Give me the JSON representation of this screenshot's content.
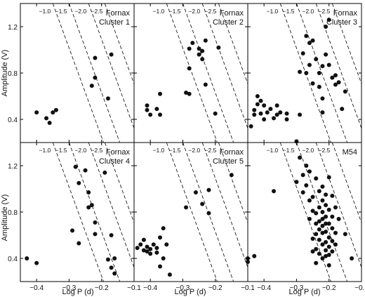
{
  "figure": {
    "xlabel": "Log P (d)",
    "ylabel": "Amplitude (V)"
  },
  "chart_data": [
    {
      "type": "scatter",
      "panel": "Fornax Cluster 1",
      "title_lines": [
        "Fornax",
        "Cluster 1"
      ],
      "xlabel": "",
      "ylabel": "Amplitude (V)",
      "xlim": [
        -0.45,
        -0.1
      ],
      "ylim": [
        0.2,
        1.4
      ],
      "x_ticks": [],
      "y_ticks": [
        "0.4",
        "0.8",
        "1.2"
      ],
      "metallicity_lines": [
        {
          "label": "−1.0",
          "x_at_top": -0.35
        },
        {
          "label": "−1.5",
          "x_at_top": -0.3
        },
        {
          "label": "−2.0",
          "x_at_top": -0.24
        },
        {
          "label": "−2.5",
          "x_at_top": -0.19
        }
      ],
      "points": [
        [
          -0.4,
          0.46
        ],
        [
          -0.37,
          0.41
        ],
        [
          -0.36,
          0.37
        ],
        [
          -0.35,
          0.46
        ],
        [
          -0.34,
          0.48
        ],
        [
          -0.23,
          0.69
        ],
        [
          -0.22,
          0.76
        ],
        [
          -0.22,
          0.93
        ],
        [
          -0.18,
          0.58
        ],
        [
          -0.17,
          0.96
        ]
      ]
    },
    {
      "type": "scatter",
      "panel": "Fornax Cluster 2",
      "title_lines": [
        "Fornax",
        "Cluster 2"
      ],
      "xlabel": "",
      "ylabel": "",
      "xlim": [
        -0.45,
        -0.1
      ],
      "ylim": [
        0.2,
        1.4
      ],
      "x_ticks": [],
      "y_ticks": [],
      "metallicity_lines": [
        {
          "label": "−1.0",
          "x_at_top": -0.35
        },
        {
          "label": "−1.5",
          "x_at_top": -0.3
        },
        {
          "label": "−2.0",
          "x_at_top": -0.24
        },
        {
          "label": "−2.5",
          "x_at_top": -0.19
        }
      ],
      "points": [
        [
          -0.41,
          0.48
        ],
        [
          -0.41,
          0.52
        ],
        [
          -0.4,
          0.44
        ],
        [
          -0.38,
          0.49
        ],
        [
          -0.37,
          0.62
        ],
        [
          -0.37,
          0.44
        ],
        [
          -0.29,
          0.63
        ],
        [
          -0.28,
          0.62
        ],
        [
          -0.28,
          0.84
        ],
        [
          -0.28,
          1.01
        ],
        [
          -0.27,
          1.06
        ],
        [
          -0.25,
          1.01
        ],
        [
          -0.25,
          0.96
        ],
        [
          -0.24,
          0.99
        ],
        [
          -0.24,
          0.92
        ],
        [
          -0.23,
          1.08
        ],
        [
          -0.23,
          0.7
        ],
        [
          -0.2,
          0.45
        ],
        [
          -0.19,
          1.02
        ]
      ]
    },
    {
      "type": "scatter",
      "panel": "Fornax Cluster 3",
      "title_lines": [
        "Fornax",
        "Cluster 3"
      ],
      "xlabel": "",
      "ylabel": "",
      "xlim": [
        -0.45,
        -0.1
      ],
      "ylim": [
        0.2,
        1.4
      ],
      "x_ticks": [],
      "y_ticks": [],
      "metallicity_lines": [
        {
          "label": "−1.0",
          "x_at_top": -0.35
        },
        {
          "label": "−1.5",
          "x_at_top": -0.3
        },
        {
          "label": "−2.0",
          "x_at_top": -0.24
        },
        {
          "label": "−2.5",
          "x_at_top": -0.19
        }
      ],
      "points": [
        [
          -0.44,
          0.34
        ],
        [
          -0.43,
          0.44
        ],
        [
          -0.43,
          0.48
        ],
        [
          -0.42,
          0.53
        ],
        [
          -0.42,
          0.6
        ],
        [
          -0.41,
          0.56
        ],
        [
          -0.41,
          0.45
        ],
        [
          -0.4,
          0.52
        ],
        [
          -0.4,
          0.4
        ],
        [
          -0.39,
          0.46
        ],
        [
          -0.38,
          0.49
        ],
        [
          -0.37,
          0.41
        ],
        [
          -0.36,
          0.44
        ],
        [
          -0.36,
          0.52
        ],
        [
          -0.35,
          0.46
        ],
        [
          -0.33,
          0.45
        ],
        [
          -0.33,
          0.4
        ],
        [
          -0.3,
          0.21
        ],
        [
          -0.29,
          0.44
        ],
        [
          -0.29,
          0.81
        ],
        [
          -0.28,
          0.97
        ],
        [
          -0.27,
          0.8
        ],
        [
          -0.27,
          1.12
        ],
        [
          -0.26,
          1.06
        ],
        [
          -0.26,
          0.87
        ],
        [
          -0.25,
          1.08
        ],
        [
          -0.25,
          0.71
        ],
        [
          -0.24,
          0.92
        ],
        [
          -0.23,
          0.8
        ],
        [
          -0.23,
          0.68
        ],
        [
          -0.22,
          0.46
        ],
        [
          -0.22,
          0.58
        ],
        [
          -0.22,
          0.86
        ],
        [
          -0.21,
          0.96
        ],
        [
          -0.21,
          1.2
        ],
        [
          -0.2,
          1.26
        ],
        [
          -0.2,
          0.87
        ],
        [
          -0.19,
          0.76
        ],
        [
          -0.18,
          0.7
        ],
        [
          -0.18,
          0.78
        ],
        [
          -0.17,
          0.72
        ],
        [
          -0.16,
          0.49
        ],
        [
          -0.15,
          0.64
        ]
      ]
    },
    {
      "type": "scatter",
      "panel": "Fornax Cluster 4",
      "title_lines": [
        "Fornax",
        "Cluster 4"
      ],
      "xlabel": "Log P (d)",
      "ylabel": "Amplitude (V)",
      "xlim": [
        -0.45,
        -0.1
      ],
      "ylim": [
        0.2,
        1.4
      ],
      "x_ticks": [
        "−0.4",
        "−0.3",
        "−0.2",
        "−0.1"
      ],
      "y_ticks": [
        "0.4",
        "0.8",
        "1.2"
      ],
      "metallicity_lines": [
        {
          "label": "−1.0",
          "x_at_top": -0.35
        },
        {
          "label": "−1.5",
          "x_at_top": -0.3
        },
        {
          "label": "−2.0",
          "x_at_top": -0.24
        },
        {
          "label": "−2.5",
          "x_at_top": -0.19
        }
      ],
      "points": [
        [
          -0.43,
          0.4
        ],
        [
          -0.4,
          0.36
        ],
        [
          -0.29,
          0.64
        ],
        [
          -0.28,
          1.19
        ],
        [
          -0.27,
          1.05
        ],
        [
          -0.27,
          0.53
        ],
        [
          -0.25,
          1.16
        ],
        [
          -0.24,
          0.97
        ],
        [
          -0.24,
          0.84
        ],
        [
          -0.23,
          0.86
        ],
        [
          -0.22,
          0.71
        ],
        [
          -0.22,
          0.61
        ],
        [
          -0.19,
          1.14
        ],
        [
          -0.18,
          0.39
        ],
        [
          -0.17,
          0.32
        ],
        [
          -0.17,
          0.6
        ],
        [
          -0.16,
          0.4
        ],
        [
          -0.16,
          0.27
        ]
      ]
    },
    {
      "type": "scatter",
      "panel": "Fornax Cluster 5",
      "title_lines": [
        "Fornax",
        "Cluster 5"
      ],
      "xlabel": "Log P (d)",
      "ylabel": "",
      "xlim": [
        -0.45,
        -0.1
      ],
      "ylim": [
        0.2,
        1.4
      ],
      "x_ticks": [
        "−0.4",
        "−0.3",
        "−0.2",
        "−0.1"
      ],
      "y_ticks": [],
      "metallicity_lines": [
        {
          "label": "−1.0",
          "x_at_top": -0.35
        },
        {
          "label": "−1.5",
          "x_at_top": -0.3
        },
        {
          "label": "−2.0",
          "x_at_top": -0.24
        },
        {
          "label": "−2.5",
          "x_at_top": -0.19
        }
      ],
      "points": [
        [
          -0.44,
          0.49
        ],
        [
          -0.43,
          0.52
        ],
        [
          -0.42,
          0.56
        ],
        [
          -0.42,
          0.47
        ],
        [
          -0.41,
          0.5
        ],
        [
          -0.41,
          0.46
        ],
        [
          -0.4,
          0.44
        ],
        [
          -0.4,
          0.48
        ],
        [
          -0.39,
          0.52
        ],
        [
          -0.38,
          0.49
        ],
        [
          -0.38,
          0.45
        ],
        [
          -0.37,
          0.58
        ],
        [
          -0.37,
          0.33
        ],
        [
          -0.36,
          0.66
        ],
        [
          -0.36,
          0.4
        ],
        [
          -0.35,
          0.52
        ],
        [
          -0.34,
          0.26
        ],
        [
          -0.29,
          0.84
        ],
        [
          -0.26,
          0.97
        ],
        [
          -0.24,
          0.87
        ],
        [
          -0.22,
          0.79
        ],
        [
          -0.22,
          0.99
        ],
        [
          -0.15,
          1.12
        ],
        [
          -0.1,
          0.4
        ]
      ]
    },
    {
      "type": "scatter",
      "panel": "M54",
      "title_lines": [
        "M54"
      ],
      "xlabel": "Log P (d)",
      "ylabel": "",
      "xlim": [
        -0.45,
        -0.1
      ],
      "ylim": [
        0.2,
        1.4
      ],
      "x_ticks": [
        "−0.4",
        "−0.3",
        "−0.2",
        "−0.1"
      ],
      "y_ticks": [],
      "metallicity_lines": [
        {
          "label": "−1.0",
          "x_at_top": -0.35
        },
        {
          "label": "−1.5",
          "x_at_top": -0.3
        },
        {
          "label": "−2.0",
          "x_at_top": -0.24
        },
        {
          "label": "−2.5",
          "x_at_top": -0.19
        }
      ],
      "points": [
        [
          -0.45,
          0.37
        ],
        [
          -0.43,
          0.42
        ],
        [
          -0.37,
          0.98
        ],
        [
          -0.3,
          1.06
        ],
        [
          -0.29,
          1.27
        ],
        [
          -0.28,
          0.97
        ],
        [
          -0.28,
          1.12
        ],
        [
          -0.27,
          1.2
        ],
        [
          -0.27,
          1.03
        ],
        [
          -0.26,
          0.9
        ],
        [
          -0.26,
          0.74
        ],
        [
          -0.26,
          1.15
        ],
        [
          -0.25,
          0.93
        ],
        [
          -0.25,
          0.81
        ],
        [
          -0.25,
          0.57
        ],
        [
          -0.25,
          0.46
        ],
        [
          -0.24,
          1.09
        ],
        [
          -0.24,
          0.79
        ],
        [
          -0.24,
          0.7
        ],
        [
          -0.24,
          0.61
        ],
        [
          -0.24,
          0.48
        ],
        [
          -0.24,
          0.36
        ],
        [
          -0.23,
          0.98
        ],
        [
          -0.23,
          0.84
        ],
        [
          -0.23,
          0.72
        ],
        [
          -0.23,
          0.65
        ],
        [
          -0.23,
          0.56
        ],
        [
          -0.23,
          0.44
        ],
        [
          -0.22,
          1.02
        ],
        [
          -0.22,
          0.9
        ],
        [
          -0.22,
          0.8
        ],
        [
          -0.22,
          0.74
        ],
        [
          -0.22,
          0.68
        ],
        [
          -0.22,
          0.62
        ],
        [
          -0.22,
          0.52
        ],
        [
          -0.22,
          0.4
        ],
        [
          -0.21,
          0.95
        ],
        [
          -0.21,
          0.86
        ],
        [
          -0.21,
          0.76
        ],
        [
          -0.21,
          0.7
        ],
        [
          -0.21,
          0.63
        ],
        [
          -0.21,
          0.54
        ],
        [
          -0.21,
          0.47
        ],
        [
          -0.21,
          0.42
        ],
        [
          -0.2,
          1.1
        ],
        [
          -0.2,
          0.82
        ],
        [
          -0.2,
          0.7
        ],
        [
          -0.2,
          0.58
        ],
        [
          -0.2,
          0.5
        ],
        [
          -0.2,
          0.43
        ],
        [
          -0.2,
          0.34
        ],
        [
          -0.19,
          0.94
        ],
        [
          -0.19,
          0.76
        ],
        [
          -0.19,
          0.66
        ],
        [
          -0.19,
          0.55
        ],
        [
          -0.19,
          0.46
        ],
        [
          -0.18,
          0.84
        ],
        [
          -0.18,
          0.62
        ],
        [
          -0.18,
          0.52
        ],
        [
          -0.17,
          0.74
        ],
        [
          -0.15,
          0.61
        ],
        [
          -0.13,
          0.4
        ]
      ]
    }
  ]
}
